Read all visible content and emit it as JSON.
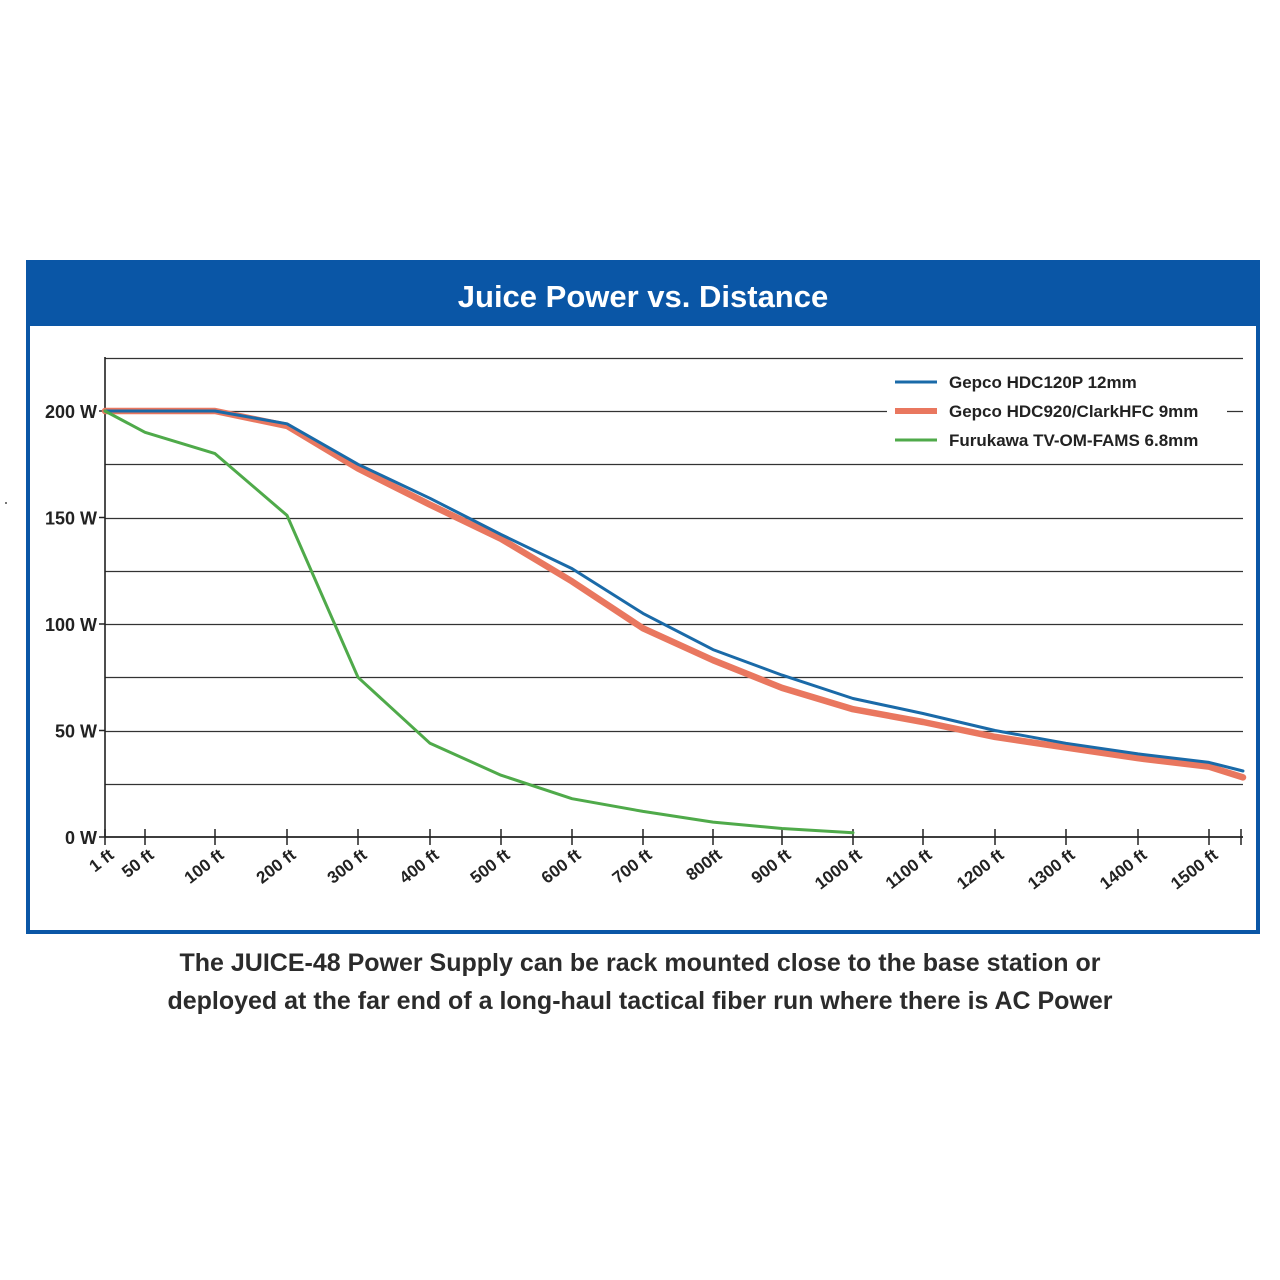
{
  "caption": {
    "line1": "The JUICE-48 Power Supply can be rack mounted close to the base station or",
    "line2": "deployed at the far end of a long-haul tactical fiber run where there is AC Power"
  },
  "chart_data": {
    "type": "line",
    "title": "Juice Power vs. Distance",
    "xlabel": "",
    "ylabel": "",
    "x_tick_labels": [
      "1 ft",
      "50 ft",
      "100 ft",
      "200 ft",
      "300 ft",
      "400 ft",
      "500 ft",
      "600 ft",
      "700 ft",
      "800ft",
      "900 ft",
      "1000 ft",
      "1100 ft",
      "1200 ft",
      "1300 ft",
      "1400 ft",
      "1500 ft"
    ],
    "y_tick_labels": [
      "0 W",
      "50 W",
      "100 W",
      "150 W",
      "200 W"
    ],
    "y_tick_values": [
      0,
      50,
      100,
      150,
      200
    ],
    "ylim": [
      0,
      225
    ],
    "grid": true,
    "legend_position": "top-right",
    "series": [
      {
        "name": "Gepco HDC120P 12mm",
        "color": "#1a6aa8",
        "points": [
          [
            1,
            200
          ],
          [
            50,
            200
          ],
          [
            100,
            200
          ],
          [
            200,
            194
          ],
          [
            300,
            175
          ],
          [
            400,
            159
          ],
          [
            500,
            142
          ],
          [
            600,
            126
          ],
          [
            700,
            105
          ],
          [
            800,
            88
          ],
          [
            900,
            76
          ],
          [
            1000,
            65
          ],
          [
            1100,
            58
          ],
          [
            1200,
            50
          ],
          [
            1300,
            44
          ],
          [
            1400,
            39
          ],
          [
            1500,
            35
          ],
          [
            1600,
            31
          ]
        ]
      },
      {
        "name": "Gepco HDC920/ClarkHFC 9mm",
        "color": "#e9775f",
        "points": [
          [
            1,
            200
          ],
          [
            50,
            200
          ],
          [
            100,
            200
          ],
          [
            200,
            193
          ],
          [
            300,
            173
          ],
          [
            400,
            156
          ],
          [
            500,
            140
          ],
          [
            600,
            120
          ],
          [
            700,
            98
          ],
          [
            800,
            83
          ],
          [
            900,
            70
          ],
          [
            1000,
            60
          ],
          [
            1100,
            54
          ],
          [
            1200,
            47
          ],
          [
            1300,
            42
          ],
          [
            1400,
            37
          ],
          [
            1500,
            33
          ],
          [
            1600,
            28
          ]
        ]
      },
      {
        "name": "Furukawa TV-OM-FAMS 6.8mm",
        "color": "#4faa4a",
        "points": [
          [
            1,
            200
          ],
          [
            50,
            190
          ],
          [
            100,
            180
          ],
          [
            200,
            151
          ],
          [
            300,
            75
          ],
          [
            400,
            44
          ],
          [
            500,
            29
          ],
          [
            600,
            18
          ],
          [
            700,
            12
          ],
          [
            800,
            7
          ],
          [
            900,
            4
          ],
          [
            1000,
            2
          ]
        ]
      }
    ]
  }
}
